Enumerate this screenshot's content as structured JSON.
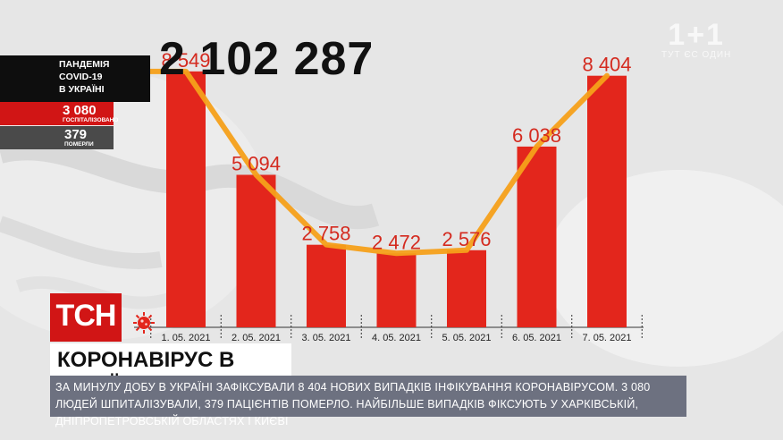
{
  "overlay": {
    "total_cases": "2 102 287",
    "watermark_logo": "1+1",
    "watermark_sub": "ТУТ ЄС ОДИН",
    "pandemic_lines": [
      "ПАНДЕМІЯ",
      "COVID-19",
      "В УКРАЇНІ"
    ],
    "hospitalized_value": "3 080",
    "hospitalized_label": "ГОСПІТАЛІЗОВАНО",
    "died_value": "379",
    "died_label": "ПОМЕРЛИ",
    "channel_logo": "ТСН",
    "headline": "КОРОНАВІРУС В УКРАЇНІ",
    "ticker": "ЗА МИНУЛУ ДОБУ В УКРАЇНІ ЗАФІКСУВАЛИ 8 404 НОВИХ ВИПАДКІВ ІНФІКУВАННЯ КОРОНАВІРУСОМ. 3 080 ЛЮДЕЙ ШПИТАЛІЗУВАЛИ, 379 ПАЦІЄНТІВ ПОМЕРЛО. НАЙБІЛЬШЕ ВИПАДКІВ ФІКСУЮТЬ У ХАРКІВСЬКІЙ, ДНІПРОПЕТРОВСЬКІЙ ОБЛАСТЯХ І КИЄВІ"
  },
  "colors": {
    "bar": "#e3261c",
    "label": "#d42a1f",
    "line": "#f5a01a",
    "axis": "#333333"
  },
  "chart_data": {
    "type": "bar",
    "categories": [
      "1. 05. 2021",
      "2. 05. 2021",
      "3. 05. 2021",
      "4. 05. 2021",
      "5. 05. 2021",
      "6. 05. 2021",
      "7. 05. 2021"
    ],
    "value_labels": [
      "8 549",
      "5 094",
      "2 758",
      "2 472",
      "2 576",
      "6 038",
      "8 404"
    ],
    "series": [
      {
        "values": [
          8549,
          5094,
          2758,
          2472,
          2576,
          6038,
          8404
        ]
      }
    ],
    "line_overlay": true,
    "ylim": [
      0,
      9500
    ],
    "grid": false
  }
}
